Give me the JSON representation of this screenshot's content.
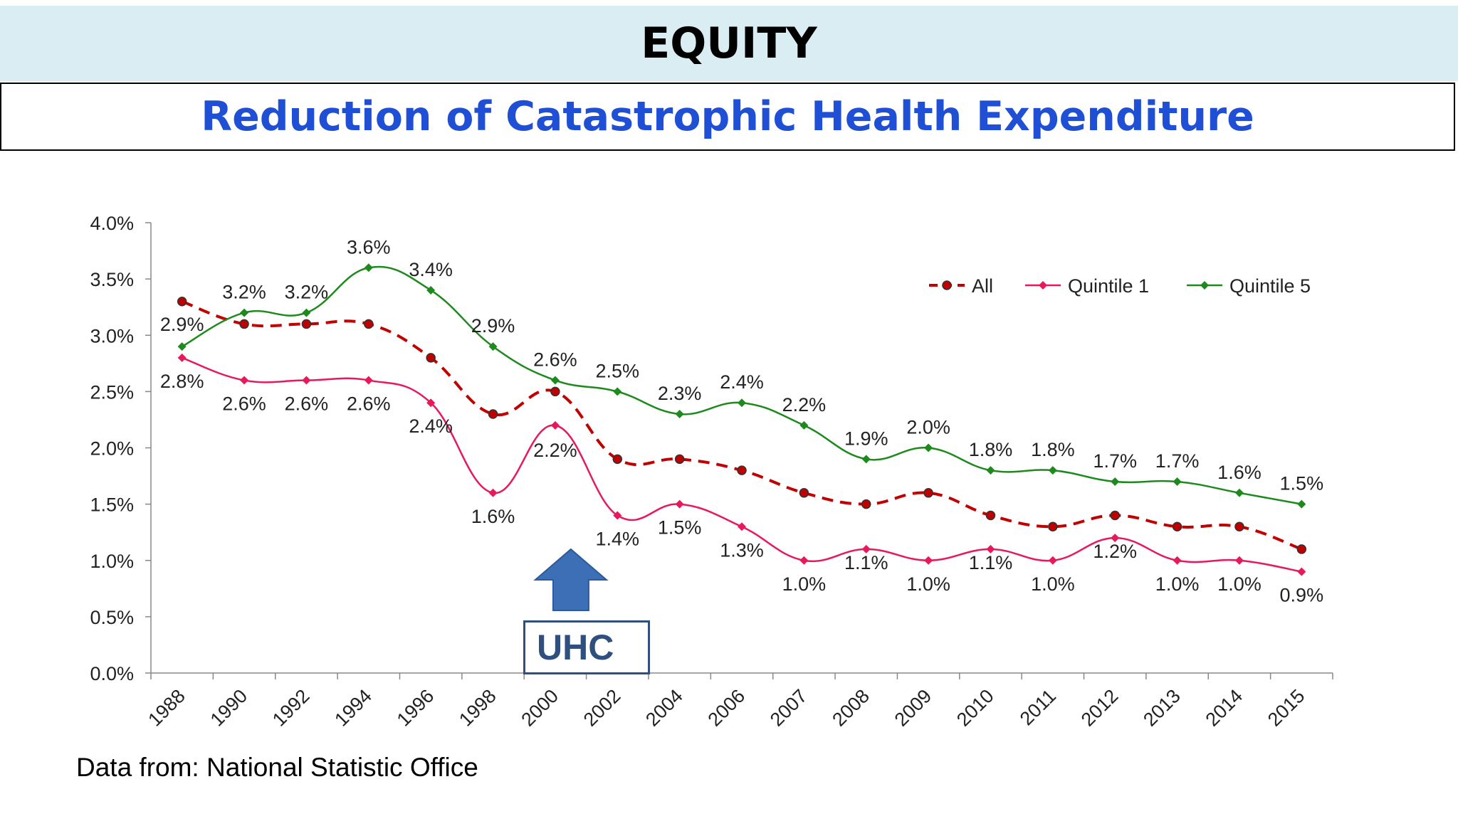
{
  "header": {
    "title": "EQUITY"
  },
  "subtitle": {
    "text": "Reduction of Catastrophic Health Expenditure"
  },
  "annotation": {
    "label": "UHC",
    "category": "2000"
  },
  "source": {
    "text": "Data from: National Statistic Office"
  },
  "colors": {
    "band": "#daedf3",
    "subtitle": "#1f4fd4",
    "all": "#c00000",
    "q1": "#e8195a",
    "q5": "#1e8a1e",
    "arrow": "#3d6fb6",
    "uhc": "#2f4f7f"
  },
  "chart_data": {
    "type": "line",
    "categories": [
      "1988",
      "1990",
      "1992",
      "1994",
      "1996",
      "1998",
      "2000",
      "2002",
      "2004",
      "2006",
      "2007",
      "2008",
      "2009",
      "2010",
      "2011",
      "2012",
      "2013",
      "2014",
      "2015"
    ],
    "yticks": [
      "0.0%",
      "0.5%",
      "1.0%",
      "1.5%",
      "2.0%",
      "2.5%",
      "3.0%",
      "3.5%",
      "4.0%"
    ],
    "ylim": [
      0,
      4.0
    ],
    "grid": false,
    "legend_position": "top-right",
    "series": [
      {
        "name": "All",
        "key": "all",
        "style": "dashed",
        "marker": "circle",
        "values": [
          3.3,
          3.1,
          3.1,
          3.1,
          2.8,
          2.3,
          2.5,
          1.9,
          1.9,
          1.8,
          1.6,
          1.5,
          1.6,
          1.4,
          1.3,
          1.4,
          1.3,
          1.3,
          1.1
        ],
        "labels": []
      },
      {
        "name": "Quintile 1",
        "key": "q1",
        "style": "solid",
        "marker": "diamond",
        "values": [
          2.8,
          2.6,
          2.6,
          2.6,
          2.4,
          1.6,
          2.2,
          1.4,
          1.5,
          1.3,
          1.0,
          1.1,
          1.0,
          1.1,
          1.0,
          1.2,
          1.0,
          1.0,
          0.9
        ],
        "labels": [
          "2.8%",
          "2.6%",
          "2.6%",
          "2.6%",
          "2.4%",
          "1.6%",
          "2.2%",
          "1.4%",
          "1.5%",
          "1.3%",
          "1.0%",
          "1.1%",
          "1.0%",
          "1.1%",
          "1.0%",
          "1.2%",
          "1.0%",
          "1.0%",
          "0.9%"
        ]
      },
      {
        "name": "Quintile 5",
        "key": "q5",
        "style": "solid",
        "marker": "diamond",
        "values": [
          2.9,
          3.2,
          3.2,
          3.6,
          3.4,
          2.9,
          2.6,
          2.5,
          2.3,
          2.4,
          2.2,
          1.9,
          2.0,
          1.8,
          1.8,
          1.7,
          1.7,
          1.6,
          1.5
        ],
        "labels": [
          "2.9%",
          "3.2%",
          "3.2%",
          "3.6%",
          "3.4%",
          "2.9%",
          "2.6%",
          "2.5%",
          "2.3%",
          "2.4%",
          "2.2%",
          "1.9%",
          "2.0%",
          "1.8%",
          "1.8%",
          "1.7%",
          "1.7%",
          "1.6%",
          "1.5%"
        ]
      }
    ]
  }
}
